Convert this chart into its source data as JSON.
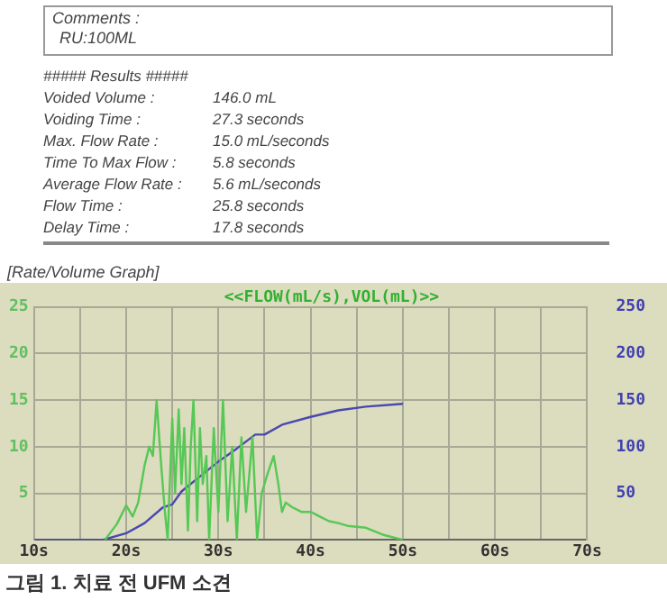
{
  "chart_data": {
    "type": "line",
    "title": "[Rate/Volume Graph]",
    "subtitle": "<<FLOW(mL/s),VOL(mL)>>",
    "annotations": [
      "Comments :",
      "RU:100ML",
      "##### Results #####",
      "Voided Volume : 146.0 mL",
      "Voiding Time : 27.3 seconds",
      "Max. Flow Rate : 15.0 mL/seconds",
      "Time To Max Flow : 5.8 seconds",
      "Average Flow Rate : 5.6 mL/seconds",
      "Flow Time : 25.8 seconds",
      "Delay Time : 17.8 seconds",
      "그림 1. 치료 전 UFM 소견"
    ],
    "series": [
      {
        "color": "#55c855",
        "x": [
          17.7,
          19,
          20,
          20.7,
          21.3,
          22,
          22.5,
          22.9,
          23.3,
          23.8,
          24.2,
          24.5,
          25,
          25.3,
          25.7,
          26,
          26.3,
          26.7,
          27,
          27.3,
          27.7,
          28,
          28.3,
          28.7,
          29,
          29.5,
          30,
          30.5,
          31,
          31.5,
          32,
          32.5,
          33,
          33.7,
          34.2,
          34.7,
          35.3,
          36,
          36.5,
          36.9,
          37.3,
          38,
          39,
          40,
          41,
          42,
          43,
          44,
          46,
          48,
          50
        ],
        "values": [
          0,
          1.7,
          3.7,
          2.5,
          4,
          8,
          10,
          9,
          15,
          8,
          3,
          0,
          13,
          5,
          14,
          6,
          12,
          1,
          10,
          15,
          2,
          12,
          6,
          9,
          0,
          12,
          3,
          15,
          2,
          10,
          0,
          11,
          3,
          11,
          0,
          5,
          7,
          9,
          6,
          3,
          4,
          3.5,
          3,
          3,
          2.5,
          2,
          1.8,
          1.5,
          1.3,
          0.5,
          0
        ]
      },
      {
        "axis": "y2",
        "color": "#4848b0",
        "x": [
          10,
          17.5,
          20,
          22,
          24,
          25,
          26,
          28,
          30,
          32,
          34,
          35,
          37,
          40,
          43,
          46,
          50
        ],
        "values": [
          0,
          0,
          7,
          18,
          35,
          38,
          52,
          68,
          84,
          98,
          113,
          113,
          124,
          132,
          139,
          143,
          146
        ]
      }
    ],
    "xlim": [
      10,
      70
    ],
    "xticks": [
      {
        "value": 10,
        "label": "10s"
      },
      {
        "value": 15,
        "label": null
      },
      {
        "value": 20,
        "label": "20s"
      },
      {
        "value": 25,
        "label": null
      },
      {
        "value": 30,
        "label": "30s"
      },
      {
        "value": 35,
        "label": null
      },
      {
        "value": 40,
        "label": "40s"
      },
      {
        "value": 45,
        "label": null
      },
      {
        "value": 50,
        "label": "50s"
      },
      {
        "value": 55,
        "label": null
      },
      {
        "value": 60,
        "label": "60s"
      },
      {
        "value": 65,
        "label": null
      },
      {
        "value": 70,
        "label": "70s"
      }
    ],
    "ylim": [
      0,
      25
    ],
    "yticks": [
      5,
      10,
      15,
      20,
      25
    ],
    "y2lim": [
      0,
      250
    ],
    "y2ticks": [
      50,
      100,
      150,
      200,
      250
    ],
    "grid": true,
    "marker": "none",
    "line_style": "solid"
  }
}
